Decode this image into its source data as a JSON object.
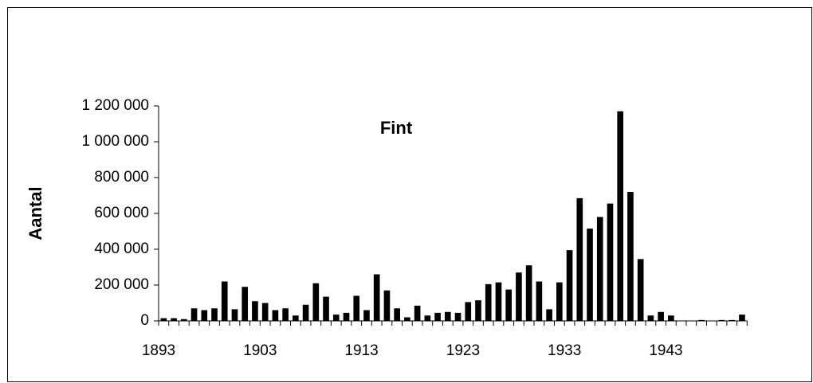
{
  "chart_data": {
    "type": "bar",
    "title": "Fint",
    "y_label": "Aantal",
    "categories": [
      "1893",
      null,
      null,
      null,
      null,
      null,
      null,
      null,
      null,
      null,
      "1903",
      null,
      null,
      null,
      null,
      null,
      null,
      null,
      null,
      null,
      "1913",
      null,
      null,
      null,
      null,
      null,
      null,
      null,
      null,
      null,
      "1923",
      null,
      null,
      null,
      null,
      null,
      null,
      null,
      null,
      null,
      "1933",
      null,
      null,
      null,
      null,
      null,
      null,
      null,
      null,
      null,
      "1943",
      null,
      null,
      null,
      null,
      null,
      null,
      null
    ],
    "values": [
      15000,
      15000,
      10000,
      70000,
      60000,
      70000,
      220000,
      65000,
      190000,
      110000,
      100000,
      60000,
      70000,
      30000,
      90000,
      210000,
      135000,
      35000,
      45000,
      140000,
      60000,
      260000,
      170000,
      70000,
      20000,
      85000,
      30000,
      45000,
      50000,
      45000,
      105000,
      115000,
      205000,
      215000,
      175000,
      270000,
      310000,
      220000,
      65000,
      215000,
      395000,
      685000,
      515000,
      580000,
      655000,
      1170000,
      720000,
      345000,
      30000,
      50000,
      30000,
      0,
      0,
      5000,
      0,
      5000,
      5000,
      35000
    ],
    "color": "#000000",
    "ylim": [
      0,
      1200000
    ],
    "yticks": [
      0,
      {
        "value": 200000,
        "label": "200 000"
      },
      {
        "value": 400000,
        "label": "400 000"
      },
      {
        "value": 600000,
        "label": "600 000"
      },
      {
        "value": 800000,
        "label": "800 000"
      },
      {
        "value": 1000000,
        "label": "1 000 000"
      },
      {
        "value": 1200000,
        "label": "1 200 000"
      }
    ]
  }
}
